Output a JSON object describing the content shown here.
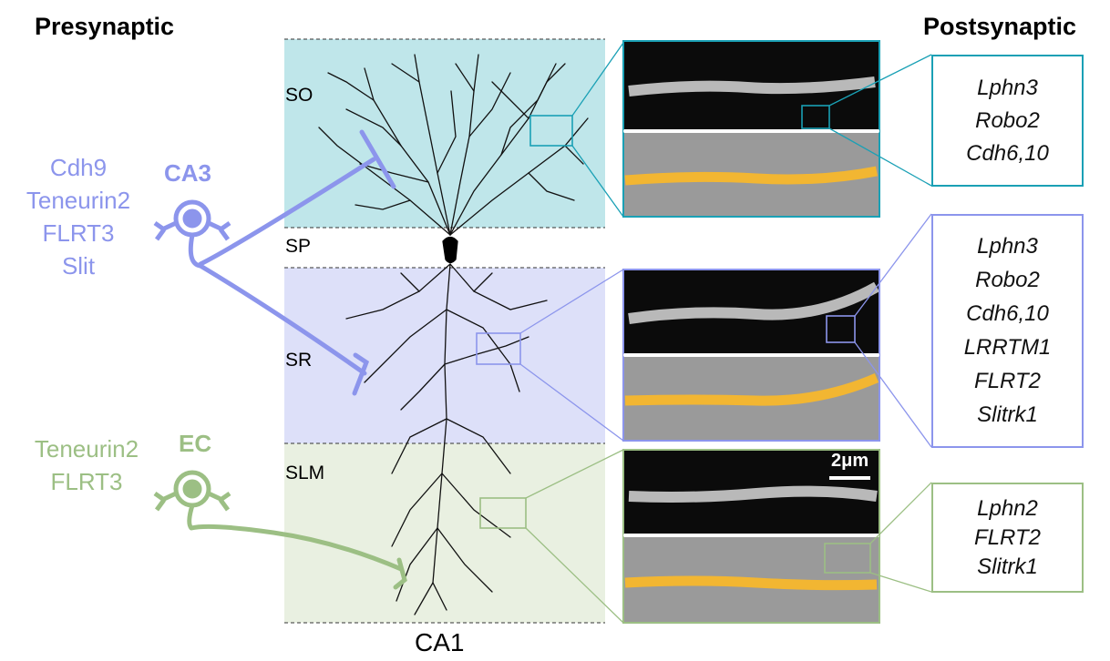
{
  "headers": {
    "presynaptic": "Presynaptic",
    "postsynaptic": "Postsynaptic"
  },
  "layers": [
    {
      "label": "SO",
      "color": "#bfe6ea"
    },
    {
      "label": "SP",
      "color": "#ffffff"
    },
    {
      "label": "SR",
      "color": "#dde0f9"
    },
    {
      "label": "SLM",
      "color": "#e9f0e1"
    }
  ],
  "region_label": "CA1",
  "ca3": {
    "label": "CA3",
    "color": "#8c95ec",
    "genes": [
      "Cdh9",
      "Teneurin2",
      "FLRT3",
      "Slit"
    ]
  },
  "ec": {
    "label": "EC",
    "color": "#9cbf84",
    "genes": [
      "Teneurin2",
      "FLRT3"
    ]
  },
  "scale_bar": "2μm",
  "postsynaptic_boxes": [
    {
      "color": "#1aa0b5",
      "genes": [
        "Lphn3",
        "Robo2",
        "Cdh6,10"
      ]
    },
    {
      "color": "#8c95ec",
      "genes": [
        "Lphn3",
        "Robo2",
        "Cdh6,10",
        "LRRTM1",
        "FLRT2",
        "Slitrk1"
      ]
    },
    {
      "color": "#9cbf84",
      "genes": [
        "Lphn2",
        "FLRT2",
        "Slitrk1"
      ]
    }
  ]
}
